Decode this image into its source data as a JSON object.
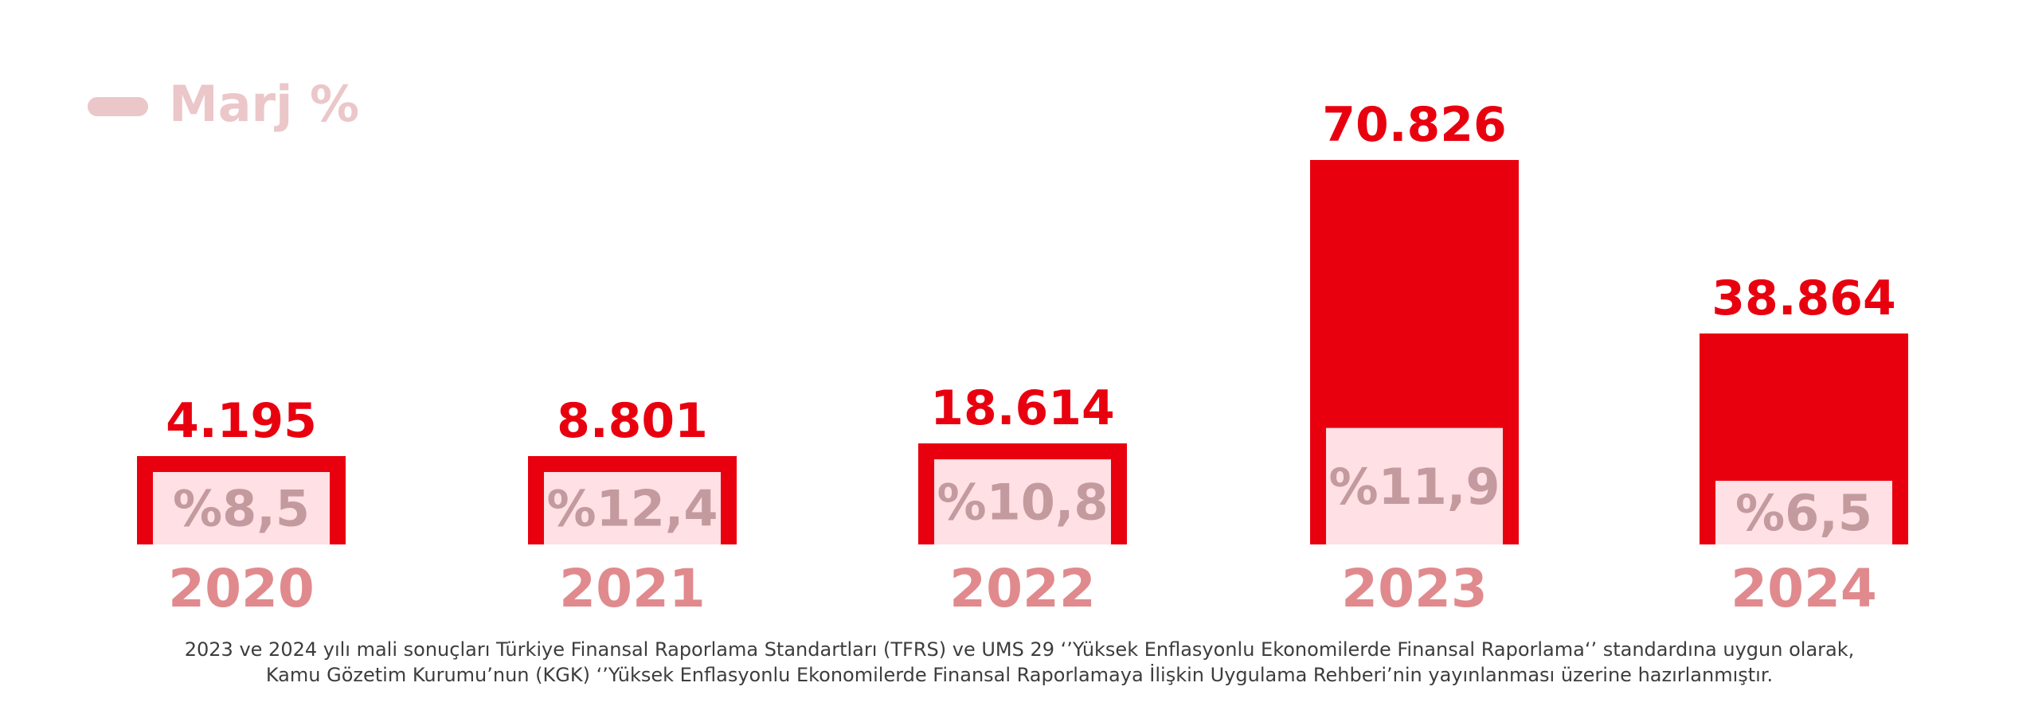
{
  "chart_data": {
    "type": "bar",
    "categories": [
      "2020",
      "2021",
      "2022",
      "2023",
      "2024"
    ],
    "values": [
      4195,
      8801,
      18614,
      70826,
      38864
    ],
    "value_labels": [
      "4.195",
      "8.801",
      "18.614",
      "70.826",
      "38.864"
    ],
    "margin_values": [
      8.5,
      12.4,
      10.8,
      11.9,
      6.5
    ],
    "margin_labels": [
      "%8,5",
      "%12,4",
      "%10,8",
      "%11,9",
      "%6,5"
    ],
    "legend": {
      "label": "Marj %",
      "placement": "top-left"
    },
    "ylim": [
      0,
      100000
    ],
    "grid": false,
    "colors": {
      "bar": "#e8000f",
      "margin_fill": "#ffe0e5",
      "margin_text": "#c39a9d",
      "year_text": "#e08a8e",
      "legend": "#ebc7c9"
    }
  },
  "footnote": {
    "line1": "2023 ve 2024 yılı mali sonuçları Türkiye Finansal Raporlama Standartları (TFRS) ve UMS 29 ‘’Yüksek Enflasyonlu Ekonomilerde Finansal Raporlama‘’ standardına uygun olarak,",
    "line2": "Kamu Gözetim Kurumu’nun (KGK) ‘’Yüksek Enflasyonlu Ekonomilerde Finansal Raporlamaya İlişkin Uygulama Rehberi’nin yayınlanması üzerine hazırlanmıştır."
  }
}
